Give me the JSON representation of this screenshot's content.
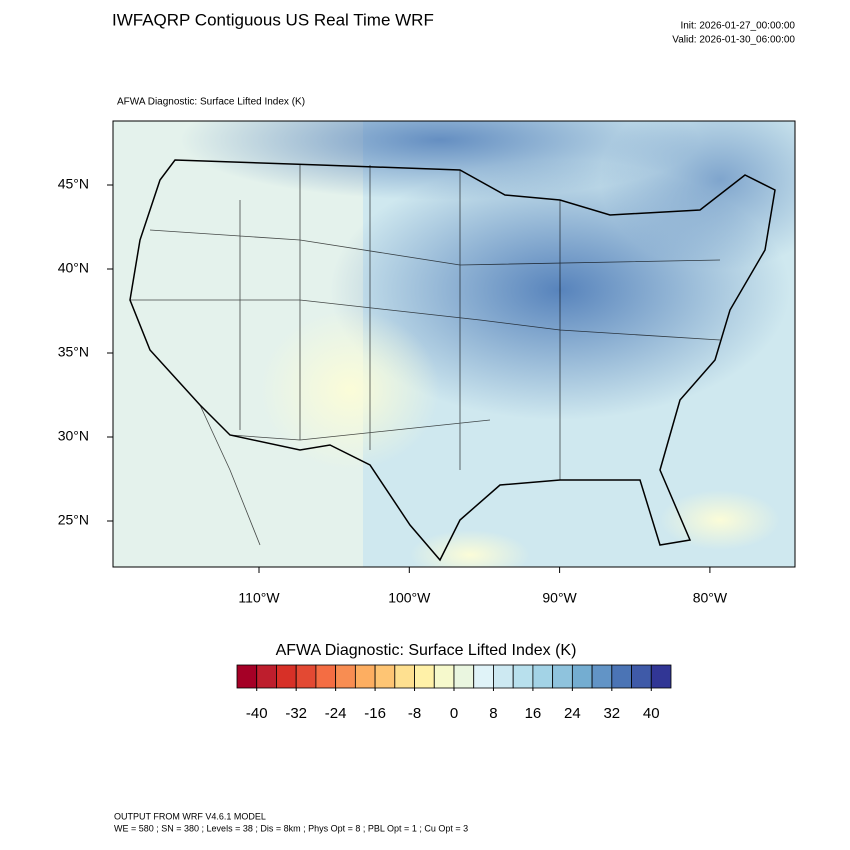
{
  "header": {
    "title": "IWFAQRP Contiguous US Real Time WRF",
    "init": "Init: 2026-01-27_00:00:00",
    "valid": "Valid: 2026-01-30_06:00:00"
  },
  "map": {
    "subtitle": "AFWA Diagnostic: Surface Lifted Index   (K)",
    "lat_ticks": [
      {
        "value": 45,
        "label": "45°N"
      },
      {
        "value": 40,
        "label": "40°N"
      },
      {
        "value": 35,
        "label": "35°N"
      },
      {
        "value": 30,
        "label": "30°N"
      },
      {
        "value": 25,
        "label": "25°N"
      }
    ],
    "lon_ticks": [
      {
        "value": -110,
        "label": "110°W"
      },
      {
        "value": -100,
        "label": "100°W"
      },
      {
        "value": -90,
        "label": "90°W"
      },
      {
        "value": -80,
        "label": "80°W"
      }
    ]
  },
  "colorbar": {
    "title": "AFWA Diagnostic: Surface Lifted Index  (K)",
    "lim": [
      -44,
      44
    ],
    "ticks": [
      -40,
      -32,
      -24,
      -16,
      -8,
      0,
      8,
      16,
      24,
      32,
      40
    ],
    "colors": [
      "#a50026",
      "#be1e2d",
      "#d73027",
      "#e34933",
      "#f46d43",
      "#f88d52",
      "#fdae61",
      "#fec574",
      "#fee090",
      "#fff1a8",
      "#f6f9cc",
      "#eaf6e0",
      "#e0f3f8",
      "#cde9f2",
      "#b8e0ed",
      "#a3d3e6",
      "#8fc3dd",
      "#74add1",
      "#6294c6",
      "#4b74b5",
      "#3f5aa8",
      "#313695"
    ]
  },
  "footer": {
    "line1": "OUTPUT FROM WRF V4.6.1 MODEL",
    "line2": "WE = 580 ; SN = 380 ; Levels = 38 ; Dis = 8km ; Phys Opt = 8 ; PBL Opt = 1 ; Cu Opt = 3"
  }
}
